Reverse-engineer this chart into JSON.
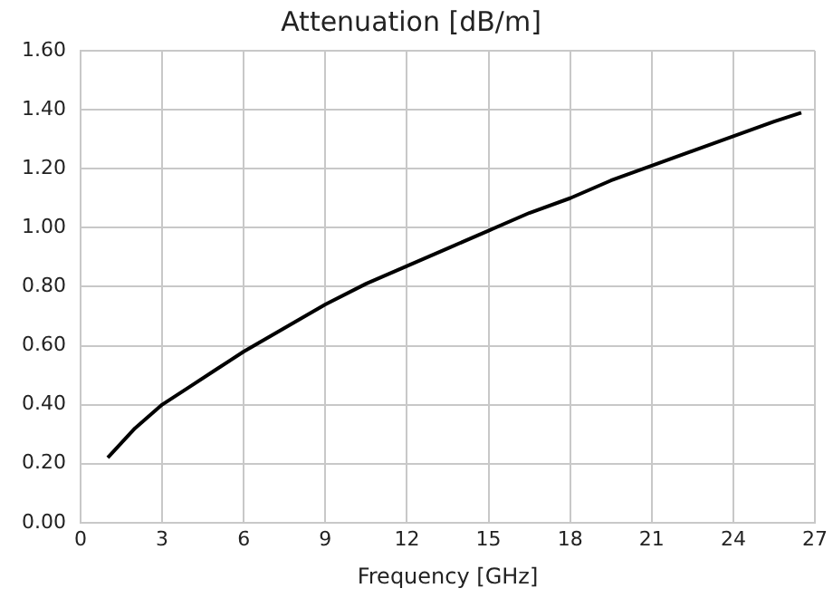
{
  "chart_data": {
    "type": "line",
    "title": "Attenuation [dB/m]",
    "xlabel": "Frequency [GHz]",
    "series": [
      {
        "color": "#000000",
        "x": [
          1,
          1.5,
          2,
          3,
          4,
          5,
          6,
          7.5,
          9,
          10.5,
          12,
          13.5,
          15,
          16.5,
          18,
          19.5,
          21,
          22.5,
          24,
          25.5,
          26.5
        ],
        "values": [
          0.22,
          0.27,
          0.32,
          0.4,
          0.46,
          0.52,
          0.58,
          0.66,
          0.74,
          0.81,
          0.87,
          0.93,
          0.99,
          1.05,
          1.1,
          1.16,
          1.21,
          1.26,
          1.31,
          1.36,
          1.39
        ]
      }
    ],
    "xlim": [
      0,
      27
    ],
    "xticks": [
      0,
      3,
      6,
      9,
      12,
      15,
      18,
      21,
      24,
      27
    ],
    "ylim": [
      0,
      1.6
    ],
    "yticks": [
      {
        "value": 0,
        "label": "0.00"
      },
      {
        "value": 0.2,
        "label": "0.20"
      },
      {
        "value": 0.4,
        "label": "0.40"
      },
      {
        "value": 0.6,
        "label": "0.60"
      },
      {
        "value": 0.8,
        "label": "0.80"
      },
      {
        "value": 1,
        "label": "1.00"
      },
      {
        "value": 1.2,
        "label": "1.20"
      },
      {
        "value": 1.4,
        "label": "1.40"
      },
      {
        "value": 1.6,
        "label": "1.60"
      }
    ],
    "grid": true,
    "legend": false,
    "marker": "none",
    "line_style": "solid"
  }
}
